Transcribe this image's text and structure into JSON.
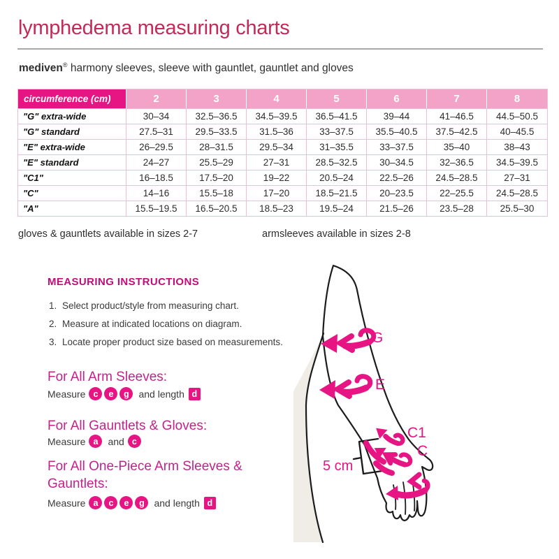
{
  "title": "lymphedema measuring charts",
  "subtitle": {
    "brand": "mediven",
    "reg": "®",
    "rest": " harmony sleeves, sleeve with gauntlet, gauntlet and gloves"
  },
  "table": {
    "header_label": "circumference (cm)",
    "sizes": [
      "2",
      "3",
      "4",
      "5",
      "6",
      "7",
      "8"
    ],
    "rows": [
      {
        "label": "\"G\" extra-wide",
        "values": [
          "30–34",
          "32.5–36.5",
          "34.5–39.5",
          "36.5–41.5",
          "39–44",
          "41–46.5",
          "44.5–50.5"
        ]
      },
      {
        "label": "\"G\" standard",
        "values": [
          "27.5–31",
          "29.5–33.5",
          "31.5–36",
          "33–37.5",
          "35.5–40.5",
          "37.5–42.5",
          "40–45.5"
        ]
      },
      {
        "label": "\"E\" extra-wide",
        "values": [
          "26–29.5",
          "28–31.5",
          "29.5–34",
          "31–35.5",
          "33–37.5",
          "35–40",
          "38–43"
        ]
      },
      {
        "label": "\"E\" standard",
        "values": [
          "24–27",
          "25.5–29",
          "27–31",
          "28.5–32.5",
          "30–34.5",
          "32–36.5",
          "34.5–39.5"
        ]
      },
      {
        "label": "\"C1\"",
        "values": [
          "16–18.5",
          "17.5–20",
          "19–22",
          "20.5–24",
          "22.5–26",
          "24.5–28.5",
          "27–31"
        ]
      },
      {
        "label": "\"C\"",
        "values": [
          "14–16",
          "15.5–18",
          "17–20",
          "18.5–21.5",
          "20–23.5",
          "22–25.5",
          "24.5–28.5"
        ]
      },
      {
        "label": "\"A\"",
        "values": [
          "15.5–19.5",
          "16.5–20.5",
          "18.5–23",
          "19.5–24",
          "21.5–26",
          "23.5–28",
          "25.5–30"
        ]
      }
    ]
  },
  "notes": {
    "left": "gloves & gauntlets available in sizes 2-7",
    "right": "armsleeves available in sizes 2-8"
  },
  "instructions": {
    "heading": "MEASURING INSTRUCTIONS",
    "steps": [
      "Select product/style from measuring chart.",
      "Measure at indicated locations on diagram.",
      "Locate proper product size based on measurements."
    ]
  },
  "sections": [
    {
      "heading": "For All Arm Sleeves:",
      "tokens": [
        {
          "t": "text",
          "v": "Measure"
        },
        {
          "t": "circle",
          "v": "c"
        },
        {
          "t": "circle",
          "v": "e"
        },
        {
          "t": "circle",
          "v": "g"
        },
        {
          "t": "text",
          "v": "and length"
        },
        {
          "t": "square",
          "v": "d"
        }
      ]
    },
    {
      "heading": "For All Gauntlets & Gloves:",
      "tokens": [
        {
          "t": "text",
          "v": "Measure"
        },
        {
          "t": "circle",
          "v": "a"
        },
        {
          "t": "text",
          "v": "and"
        },
        {
          "t": "circle",
          "v": "c"
        }
      ]
    },
    {
      "heading": "For All One-Piece Arm Sleeves & Gauntlets:",
      "tokens": [
        {
          "t": "text",
          "v": "Measure"
        },
        {
          "t": "circle",
          "v": "a"
        },
        {
          "t": "circle",
          "v": "c"
        },
        {
          "t": "circle",
          "v": "e"
        },
        {
          "t": "circle",
          "v": "g"
        },
        {
          "t": "text",
          "v": "and length"
        },
        {
          "t": "square",
          "v": "d"
        }
      ]
    }
  ],
  "diagram": {
    "labels": {
      "g": "G",
      "e": "E",
      "c1": "C1",
      "c": "C"
    },
    "length_label": "5 cm"
  },
  "colors": {
    "accent_pink": "#e71583",
    "header_light_pink": "#f3a3c7",
    "table_border_pink": "#f3bcd6",
    "title_crimson": "#c42a58",
    "heading_magenta": "#c00d79",
    "section_magenta": "#c32388"
  }
}
